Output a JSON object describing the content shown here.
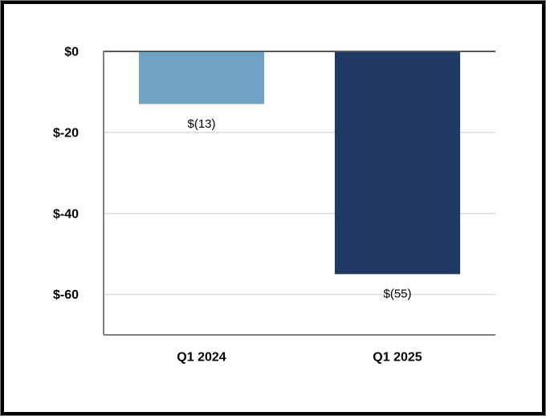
{
  "chart_data": {
    "type": "bar",
    "categories": [
      "Q1 2024",
      "Q1 2025"
    ],
    "values": [
      -13,
      -55
    ],
    "data_labels": [
      "$(13)",
      "$(55)"
    ],
    "bar_colors": [
      "#6FA2C4",
      "#203864"
    ],
    "title": "",
    "xlabel": "",
    "ylabel": "",
    "ylim": [
      -70,
      0
    ],
    "yticks": [
      0,
      -20,
      -40,
      -60
    ],
    "ytick_labels": [
      "$0",
      "$-20",
      "$-40",
      "$-60"
    ],
    "grid": true,
    "legend": "none",
    "styles": {
      "gridline_color": "#D9D9D9",
      "zero_line_color": "#595959",
      "axis_line_color": "#808080",
      "text_color": "#000000",
      "background": "#FFFFFF",
      "frame_border_color": "#000000",
      "frame_outline_color": "#808080"
    }
  }
}
